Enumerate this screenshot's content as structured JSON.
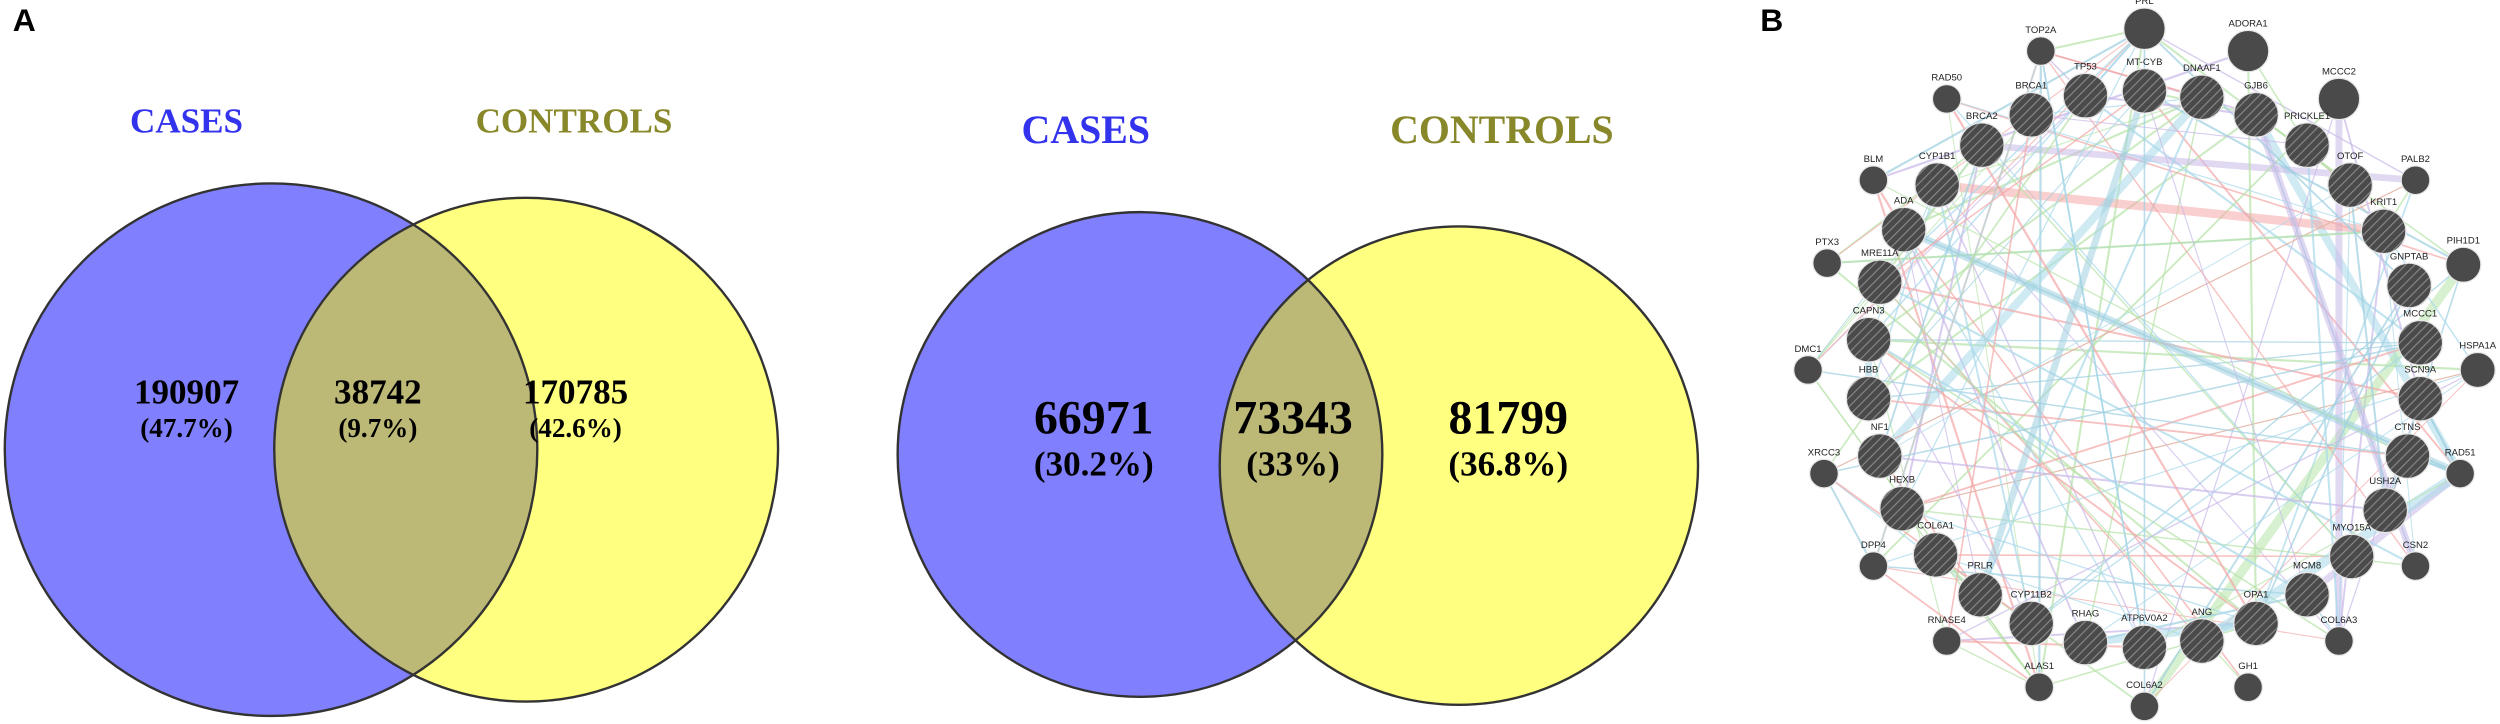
{
  "panel_a": {
    "label": "A",
    "venn_1": {
      "set_left": "CASES",
      "set_right": "CONTROLS",
      "left_only": {
        "count": 190907,
        "percent": "(47.7%)"
      },
      "overlap": {
        "count": 38742,
        "percent": "(9.7%)"
      },
      "right_only": {
        "count": 170785,
        "percent": "(42.6%)"
      }
    },
    "venn_2": {
      "set_left": "CASES",
      "set_right": "CONTROLS",
      "left_only": {
        "count": 66971,
        "percent": "(30.2%)"
      },
      "overlap": {
        "count": 73343,
        "percent": "(33%)"
      },
      "right_only": {
        "count": 81799,
        "percent": "(36.8%)"
      }
    }
  },
  "panel_b": {
    "label": "B",
    "nodes": [
      "TOP2A",
      "RAD50",
      "BLM",
      "PTX3",
      "DMC1",
      "XRCC3",
      "DPP4",
      "RNASE4",
      "ALAS1",
      "COL6A2",
      "GH1",
      "COL6A3",
      "CSN2",
      "RAD51",
      "HSPA1A",
      "PIH1D1",
      "PALB2",
      "PRL",
      "ADORA1",
      "MCCC2",
      "TP53",
      "MT-CYB",
      "DNAAF1",
      "BRCA1",
      "GJB6",
      "BRCA2",
      "PRICKLE1",
      "CYP1B1",
      "OTOF",
      "ADA",
      "KRIT1",
      "MRE11A",
      "GNPTAB",
      "CAPN3",
      "MCCC1",
      "HBB",
      "SCN9A",
      "NF1",
      "CTNS",
      "HEXB",
      "USH2A",
      "COL6A1",
      "MYO15A",
      "PRLR",
      "MCM8",
      "CYP11B2",
      "OPA1",
      "RHAG",
      "ATP6V0A2",
      "ANG"
    ]
  }
}
